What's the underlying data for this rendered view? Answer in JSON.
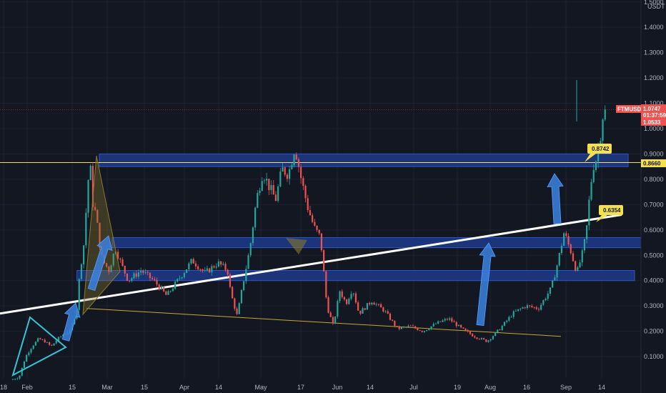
{
  "chart_data": {
    "type": "candlestick",
    "symbol": "FTMUSDT",
    "currency": "USDT",
    "y_axis": {
      "ticks": [
        "0.1000",
        "0.2000",
        "0.3000",
        "0.4000",
        "0.5000",
        "0.6000",
        "0.7000",
        "0.8000",
        "0.9000",
        "1.0000",
        "1.1000",
        "1.2000",
        "1.3000",
        "1.4000",
        "1.5000"
      ],
      "range": [
        0.0,
        1.52
      ]
    },
    "x_axis": {
      "ticks": [
        "18",
        "Feb",
        "15",
        "Mar",
        "15",
        "Apr",
        "14",
        "May",
        "17",
        "Jun",
        "14",
        "Jul",
        "19",
        "Aug",
        "16",
        "Sep",
        "14"
      ]
    },
    "price_tag": {
      "label": "FTMUSDT",
      "last": "1.0747",
      "countdown": "01:37:59",
      "prev": "1.0533"
    },
    "level_tag": "0.8660",
    "callouts": [
      "0.8742",
      "0.6354"
    ],
    "price_path": [
      [
        0.02,
        0.01
      ],
      [
        0.03,
        0.02
      ],
      [
        0.04,
        0.1
      ],
      [
        0.05,
        0.14
      ],
      [
        0.06,
        0.17
      ],
      [
        0.07,
        0.16
      ],
      [
        0.08,
        0.14
      ],
      [
        0.09,
        0.17
      ],
      [
        0.1,
        0.19
      ],
      [
        0.11,
        0.2
      ],
      [
        0.12,
        0.29
      ],
      [
        0.125,
        0.45
      ],
      [
        0.13,
        0.52
      ],
      [
        0.14,
        0.88
      ],
      [
        0.145,
        0.7
      ],
      [
        0.15,
        0.66
      ],
      [
        0.155,
        0.55
      ],
      [
        0.16,
        0.48
      ],
      [
        0.17,
        0.44
      ],
      [
        0.18,
        0.53
      ],
      [
        0.19,
        0.46
      ],
      [
        0.2,
        0.4
      ],
      [
        0.22,
        0.44
      ],
      [
        0.24,
        0.4
      ],
      [
        0.26,
        0.34
      ],
      [
        0.28,
        0.41
      ],
      [
        0.3,
        0.48
      ],
      [
        0.32,
        0.43
      ],
      [
        0.34,
        0.47
      ],
      [
        0.355,
        0.44
      ],
      [
        0.36,
        0.35
      ],
      [
        0.37,
        0.26
      ],
      [
        0.38,
        0.4
      ],
      [
        0.39,
        0.53
      ],
      [
        0.4,
        0.72
      ],
      [
        0.41,
        0.83
      ],
      [
        0.42,
        0.77
      ],
      [
        0.43,
        0.72
      ],
      [
        0.44,
        0.84
      ],
      [
        0.45,
        0.82
      ],
      [
        0.46,
        0.93
      ],
      [
        0.47,
        0.8
      ],
      [
        0.48,
        0.69
      ],
      [
        0.49,
        0.61
      ],
      [
        0.5,
        0.57
      ],
      [
        0.51,
        0.3
      ],
      [
        0.52,
        0.22
      ],
      [
        0.53,
        0.36
      ],
      [
        0.54,
        0.31
      ],
      [
        0.55,
        0.37
      ],
      [
        0.56,
        0.27
      ],
      [
        0.58,
        0.32
      ],
      [
        0.6,
        0.28
      ],
      [
        0.62,
        0.21
      ],
      [
        0.64,
        0.22
      ],
      [
        0.66,
        0.2
      ],
      [
        0.68,
        0.23
      ],
      [
        0.7,
        0.25
      ],
      [
        0.72,
        0.21
      ],
      [
        0.74,
        0.18
      ],
      [
        0.76,
        0.16
      ],
      [
        0.78,
        0.21
      ],
      [
        0.79,
        0.24
      ],
      [
        0.8,
        0.27
      ],
      [
        0.82,
        0.3
      ],
      [
        0.84,
        0.29
      ],
      [
        0.86,
        0.37
      ],
      [
        0.87,
        0.47
      ],
      [
        0.88,
        0.59
      ],
      [
        0.89,
        0.52
      ],
      [
        0.9,
        0.43
      ],
      [
        0.91,
        0.52
      ],
      [
        0.915,
        0.6
      ],
      [
        0.92,
        0.74
      ],
      [
        0.925,
        0.85
      ],
      [
        0.93,
        0.88
      ],
      [
        0.935,
        0.94
      ],
      [
        0.94,
        1.05
      ],
      [
        0.945,
        1.07
      ]
    ],
    "zones": [
      {
        "from": 0.85,
        "to": 0.9,
        "x": [
          0.155,
          0.98
        ]
      },
      {
        "from": 0.53,
        "to": 0.57,
        "x": [
          0.175,
          1.0
        ]
      },
      {
        "from": 0.4,
        "to": 0.44,
        "x": [
          0.12,
          0.99
        ]
      }
    ],
    "lines": {
      "trend_white": {
        "from": [
          0.0,
          0.27
        ],
        "to": [
          0.97,
          0.66
        ]
      },
      "trend_yellow": {
        "from": [
          0.135,
          0.29
        ],
        "to": [
          0.875,
          0.18
        ]
      },
      "level_yellow": 0.866,
      "current_red": 1.075
    }
  }
}
